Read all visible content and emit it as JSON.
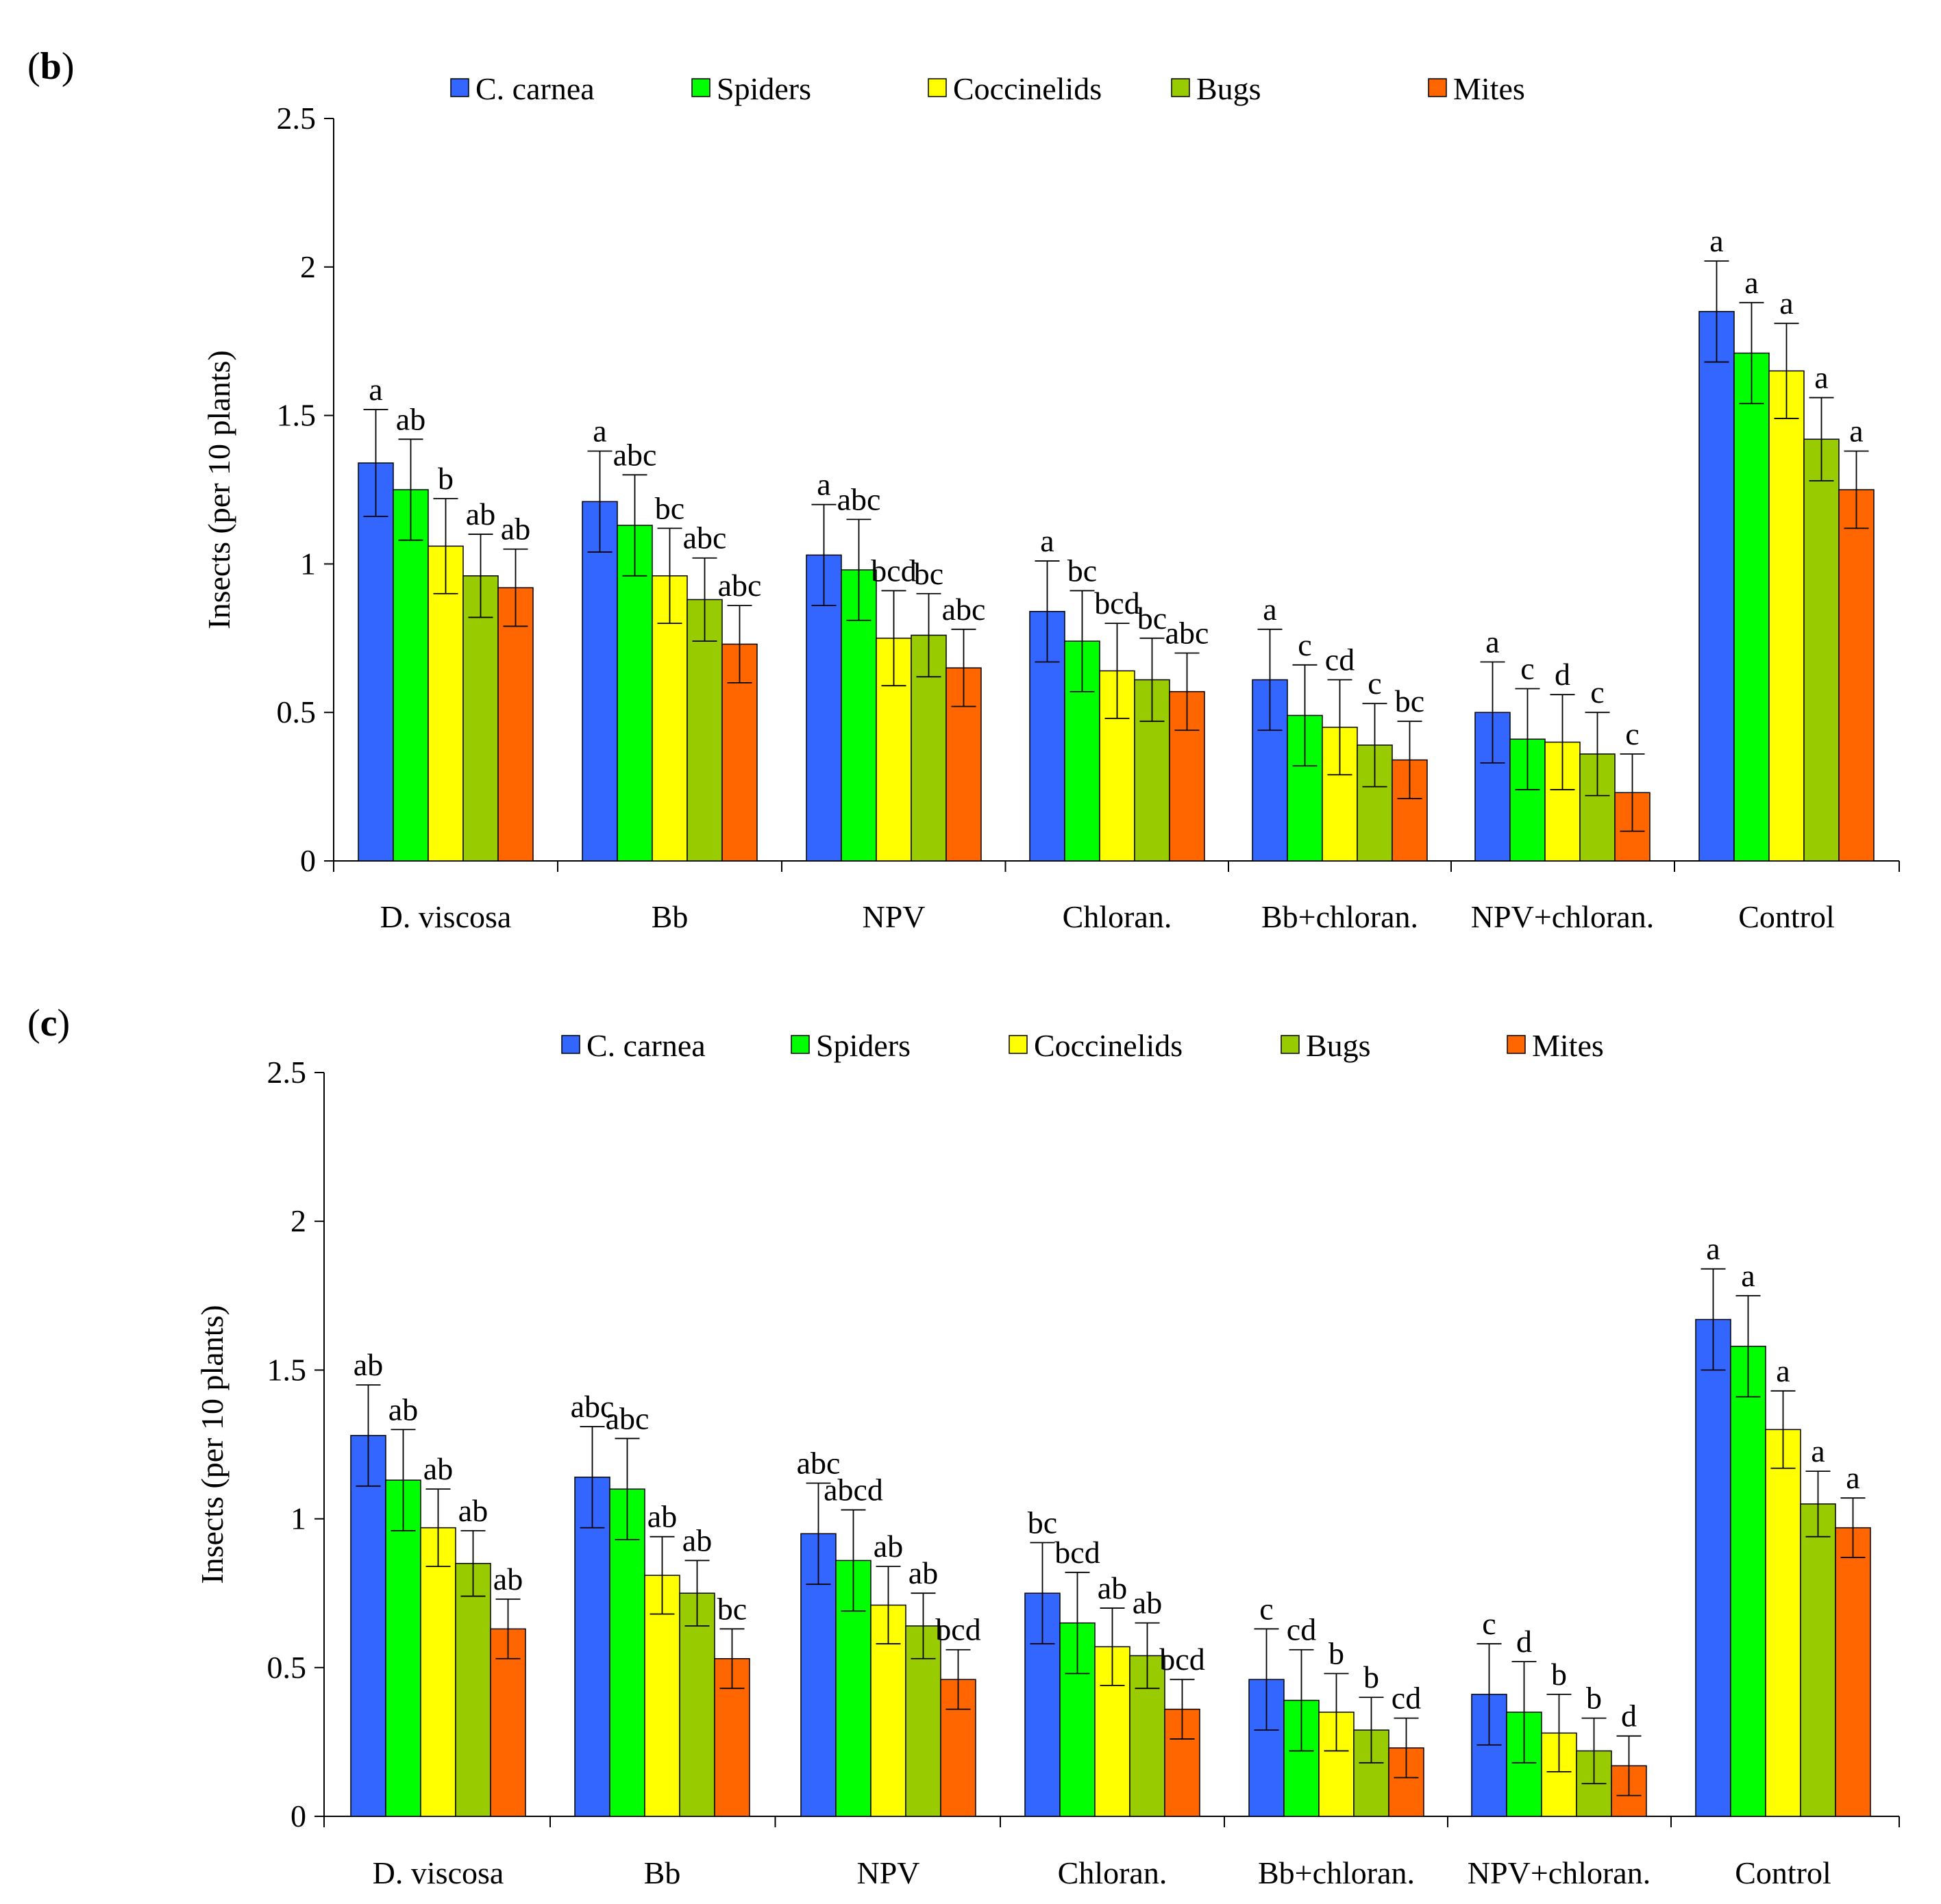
{
  "panels": [
    {
      "label_open": "(",
      "label_letter": "b",
      "label_close": ")"
    },
    {
      "label_open": "(",
      "label_letter": "c",
      "label_close": ")"
    }
  ],
  "colors": {
    "C. carnea": "#3366ff",
    "Spiders": "#00ff00",
    "Coccinelids": "#ffff00",
    "Bugs": "#99cc00",
    "Mites": "#ff6600"
  },
  "chart_data": [
    {
      "type": "bar",
      "panel": "(b)",
      "ylabel": "Insects (per 10 plants)",
      "xlabel": "",
      "ylim": [
        0,
        2.5
      ],
      "yticks": [
        "0",
        "0.5",
        "1",
        "1.5",
        "2",
        "2.5"
      ],
      "yticks_values": [
        0,
        0.5,
        1,
        1.5,
        2,
        2.5
      ],
      "legend_position": "top",
      "categories": [
        "D. viscosa",
        "Bb",
        "NPV",
        "Chloran.",
        "Bb+chloran.",
        "NPV+chloran.",
        "Control"
      ],
      "series": [
        {
          "name": "C. carnea",
          "values": [
            1.34,
            1.21,
            1.03,
            0.84,
            0.61,
            0.5,
            1.85
          ],
          "errors": [
            0.18,
            0.17,
            0.17,
            0.17,
            0.17,
            0.17,
            0.17
          ],
          "letters": [
            "a",
            "a",
            "a",
            "a",
            "a",
            "a",
            "a"
          ]
        },
        {
          "name": "Spiders",
          "values": [
            1.25,
            1.13,
            0.98,
            0.74,
            0.49,
            0.41,
            1.71
          ],
          "errors": [
            0.17,
            0.17,
            0.17,
            0.17,
            0.17,
            0.17,
            0.17
          ],
          "letters": [
            "ab",
            "abc",
            "abc",
            "bc",
            "c",
            "c",
            "a"
          ]
        },
        {
          "name": "Coccinelids",
          "values": [
            1.06,
            0.96,
            0.75,
            0.64,
            0.45,
            0.4,
            1.65
          ],
          "errors": [
            0.16,
            0.16,
            0.16,
            0.16,
            0.16,
            0.16,
            0.16
          ],
          "letters": [
            "b",
            "bc",
            "bcd",
            "bcd",
            "cd",
            "d",
            "a"
          ]
        },
        {
          "name": "Bugs",
          "values": [
            0.96,
            0.88,
            0.76,
            0.61,
            0.39,
            0.36,
            1.42
          ],
          "errors": [
            0.14,
            0.14,
            0.14,
            0.14,
            0.14,
            0.14,
            0.14
          ],
          "letters": [
            "ab",
            "abc",
            "bc",
            "bc",
            "c",
            "c",
            "a"
          ]
        },
        {
          "name": "Mites",
          "values": [
            0.92,
            0.73,
            0.65,
            0.57,
            0.34,
            0.23,
            1.25
          ],
          "errors": [
            0.13,
            0.13,
            0.13,
            0.13,
            0.13,
            0.13,
            0.13
          ],
          "letters": [
            "ab",
            "abc",
            "abc",
            "abc",
            "bc",
            "c",
            "a"
          ]
        }
      ]
    },
    {
      "type": "bar",
      "panel": "(c)",
      "ylabel": "Insects (per 10 plants)",
      "xlabel": "",
      "ylim": [
        0,
        2.5
      ],
      "yticks": [
        "0",
        "0.5",
        "1",
        "1.5",
        "2",
        "2.5"
      ],
      "yticks_values": [
        0,
        0.5,
        1,
        1.5,
        2,
        2.5
      ],
      "legend_position": "top",
      "categories": [
        "D. viscosa",
        "Bb",
        "NPV",
        "Chloran.",
        "Bb+chloran.",
        "NPV+chloran.",
        "Control"
      ],
      "series": [
        {
          "name": "C. carnea",
          "values": [
            1.28,
            1.14,
            0.95,
            0.75,
            0.46,
            0.41,
            1.67
          ],
          "errors": [
            0.17,
            0.17,
            0.17,
            0.17,
            0.17,
            0.17,
            0.17
          ],
          "letters": [
            "ab",
            "abc",
            "abc",
            "bc",
            "c",
            "c",
            "a"
          ]
        },
        {
          "name": "Spiders",
          "values": [
            1.13,
            1.1,
            0.86,
            0.65,
            0.39,
            0.35,
            1.58
          ],
          "errors": [
            0.17,
            0.17,
            0.17,
            0.17,
            0.17,
            0.17,
            0.17
          ],
          "letters": [
            "ab",
            "abc",
            "abcd",
            "bcd",
            "cd",
            "d",
            "a"
          ]
        },
        {
          "name": "Coccinelids",
          "values": [
            0.97,
            0.81,
            0.71,
            0.57,
            0.35,
            0.28,
            1.3
          ],
          "errors": [
            0.13,
            0.13,
            0.13,
            0.13,
            0.13,
            0.13,
            0.13
          ],
          "letters": [
            "ab",
            "ab",
            "ab",
            "ab",
            "b",
            "b",
            "a"
          ]
        },
        {
          "name": "Bugs",
          "values": [
            0.85,
            0.75,
            0.64,
            0.54,
            0.29,
            0.22,
            1.05
          ],
          "errors": [
            0.11,
            0.11,
            0.11,
            0.11,
            0.11,
            0.11,
            0.11
          ],
          "letters": [
            "ab",
            "ab",
            "ab",
            "ab",
            "b",
            "b",
            "a"
          ]
        },
        {
          "name": "Mites",
          "values": [
            0.63,
            0.53,
            0.46,
            0.36,
            0.23,
            0.17,
            0.97
          ],
          "errors": [
            0.1,
            0.1,
            0.1,
            0.1,
            0.1,
            0.1,
            0.1
          ],
          "letters": [
            "ab",
            "bc",
            "bcd",
            "bcd",
            "cd",
            "d",
            "a"
          ]
        }
      ]
    }
  ]
}
